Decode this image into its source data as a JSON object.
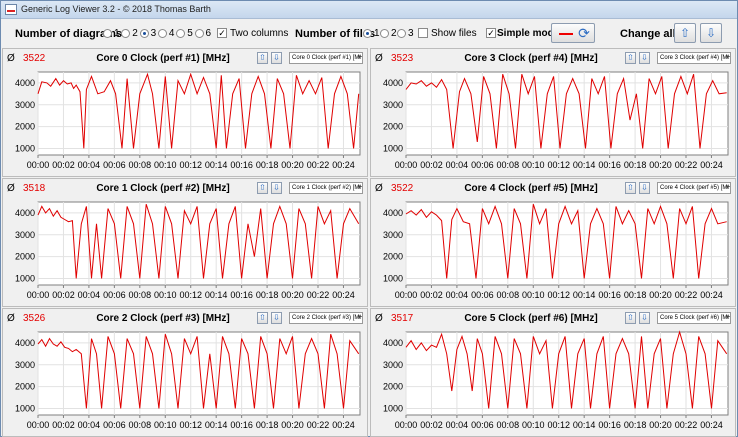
{
  "window": {
    "title": "Generic Log Viewer 3.2 - © 2018 Thomas Barth"
  },
  "toolbar": {
    "diagrams_label": "Number of diagrams",
    "diagram_options": [
      "1",
      "2",
      "3",
      "4",
      "5",
      "6"
    ],
    "diagrams_selected": "3",
    "two_columns_label": "Two columns",
    "two_columns_checked": true,
    "files_label": "Number of files",
    "file_options": [
      "1",
      "2",
      "3"
    ],
    "files_selected": "1",
    "show_files_label": "Show files",
    "show_files_checked": false,
    "simple_mode_label": "Simple mode",
    "simple_mode_checked": true,
    "change_all_label": "Change all",
    "line_color": "#e00000"
  },
  "panels": [
    {
      "title": "Core 0 Clock (perf #1) [MHz]",
      "average": "3522",
      "selector": "Core 0 Clock (perf #1) [MHz]"
    },
    {
      "title": "Core 3 Clock (perf #4) [MHz]",
      "average": "3523",
      "selector": "Core 3 Clock (perf #4) [MHz]"
    },
    {
      "title": "Core 1 Clock (perf #2) [MHz]",
      "average": "3518",
      "selector": "Core 1 Clock (perf #2) [MHz]"
    },
    {
      "title": "Core 4 Clock (perf #5) [MHz]",
      "average": "3522",
      "selector": "Core 4 Clock (perf #5) [MHz]"
    },
    {
      "title": "Core 2 Clock (perf #3) [MHz]",
      "average": "3526",
      "selector": "Core 2 Clock (perf #3) [MHz]"
    },
    {
      "title": "Core 5 Clock (perf #6) [MHz]",
      "average": "3517",
      "selector": "Core 5 Clock (perf #6) [MHz]"
    }
  ],
  "chart_data": {
    "type": "line",
    "x_tick_labels": [
      "00:00",
      "00:02",
      "00:04",
      "00:06",
      "00:08",
      "00:10",
      "00:12",
      "00:14",
      "00:16",
      "00:18",
      "00:20",
      "00:22",
      "00:24"
    ],
    "y_ticks": [
      1000,
      2000,
      3000,
      4000
    ],
    "ylim": [
      700,
      4500
    ],
    "xlim_minutes": [
      0,
      25.3
    ],
    "baseline_mhz": 3500,
    "plateau_mhz": 3800,
    "series": [
      {
        "x_minutes": [
          0.0,
          0.3,
          0.7,
          1.0,
          1.4,
          1.7,
          2.0,
          2.3,
          2.6,
          2.8,
          3.0,
          3.3,
          3.6,
          3.8,
          4.2,
          4.7,
          5.2,
          5.7,
          6.1,
          6.6,
          7.0,
          7.5,
          8.0,
          8.6,
          9.0,
          9.5,
          10.0,
          10.5,
          11.0,
          11.5,
          12.0,
          12.5,
          13.0,
          13.5,
          14.0,
          14.4,
          14.8,
          15.3,
          15.8,
          16.3,
          16.8,
          17.3,
          17.8,
          18.3,
          18.8,
          19.3,
          19.8,
          20.3,
          20.8,
          21.3,
          21.8,
          22.3,
          22.8,
          23.3,
          23.8,
          24.3,
          24.8,
          25.2
        ],
        "y_mhz": [
          3500,
          4050,
          4000,
          3850,
          4200,
          3900,
          4100,
          3950,
          4000,
          3750,
          3900,
          3600,
          1000,
          3700,
          4300,
          3500,
          3600,
          4100,
          3500,
          1000,
          4200,
          1000,
          3500,
          4400,
          3500,
          1000,
          4300,
          1000,
          4100,
          3500,
          4400,
          3500,
          4250,
          3500,
          1000,
          4350,
          1000,
          3500,
          4200,
          1000,
          3500,
          4300,
          3500,
          1000,
          4200,
          3500,
          1000,
          4350,
          3500,
          4100,
          3500,
          4250,
          1000,
          3500,
          4300,
          3500,
          1000,
          3500
        ]
      },
      {
        "x_minutes": [
          0.0,
          0.4,
          0.8,
          1.2,
          1.6,
          2.0,
          2.4,
          2.8,
          3.2,
          3.7,
          4.2,
          4.6,
          5.1,
          5.6,
          6.1,
          6.6,
          7.1,
          7.6,
          8.1,
          8.6,
          9.1,
          9.6,
          10.1,
          10.6,
          11.1,
          11.6,
          12.1,
          12.6,
          13.1,
          13.6,
          14.1,
          14.6,
          15.1,
          15.6,
          16.1,
          16.6,
          17.1,
          17.6,
          18.1,
          18.6,
          19.1,
          19.6,
          20.1,
          20.6,
          21.1,
          21.6,
          22.1,
          22.6,
          23.1,
          23.6,
          24.1,
          24.6,
          25.2
        ],
        "y_mhz": [
          3700,
          4000,
          3950,
          4100,
          3850,
          4000,
          3800,
          4150,
          3700,
          1000,
          3600,
          4200,
          3500,
          1300,
          4300,
          3500,
          1000,
          4400,
          3500,
          1000,
          4400,
          3500,
          4300,
          1000,
          3500,
          4300,
          1000,
          3500,
          4200,
          3500,
          1000,
          4200,
          3500,
          4300,
          1000,
          3500,
          4200,
          2300,
          3500,
          1000,
          4200,
          3500,
          4300,
          1000,
          3500,
          4300,
          3500,
          4400,
          1000,
          3500,
          4100,
          3500,
          3550
        ]
      },
      {
        "x_minutes": [
          0.0,
          0.3,
          0.6,
          0.9,
          1.2,
          1.5,
          1.8,
          2.1,
          2.4,
          2.7,
          3.0,
          3.4,
          3.8,
          4.2,
          4.6,
          5.0,
          5.5,
          6.0,
          6.5,
          7.0,
          7.5,
          8.0,
          8.5,
          9.0,
          9.5,
          10.0,
          10.5,
          11.0,
          11.5,
          12.0,
          12.5,
          13.0,
          13.5,
          14.0,
          14.5,
          15.0,
          15.5,
          16.0,
          16.5,
          17.0,
          17.5,
          18.0,
          18.5,
          19.0,
          19.5,
          20.0,
          20.5,
          21.0,
          21.5,
          22.0,
          22.5,
          23.0,
          23.5,
          24.0,
          24.5,
          25.2
        ],
        "y_mhz": [
          3900,
          4300,
          4000,
          4200,
          3850,
          4100,
          3800,
          3700,
          3600,
          3650,
          1000,
          3500,
          4300,
          1000,
          3500,
          1000,
          4200,
          3500,
          1000,
          4300,
          3500,
          1000,
          4400,
          3500,
          1000,
          4300,
          3500,
          1000,
          4100,
          3500,
          4300,
          1000,
          3500,
          4200,
          1000,
          3500,
          4300,
          1000,
          3500,
          2000,
          4200,
          1000,
          3500,
          4300,
          3500,
          1000,
          4200,
          3500,
          1000,
          4300,
          3500,
          4100,
          1000,
          3500,
          4200,
          3500
        ]
      },
      {
        "x_minutes": [
          0.0,
          0.4,
          0.8,
          1.2,
          1.6,
          2.0,
          2.4,
          2.8,
          3.2,
          3.6,
          4.0,
          4.5,
          5.0,
          5.5,
          6.0,
          6.5,
          7.0,
          7.5,
          8.0,
          8.5,
          9.0,
          9.5,
          10.0,
          10.5,
          11.0,
          11.5,
          12.0,
          12.5,
          13.0,
          13.5,
          14.0,
          14.5,
          15.0,
          15.5,
          16.0,
          16.5,
          17.0,
          17.5,
          18.0,
          18.5,
          19.0,
          19.5,
          20.0,
          20.5,
          21.0,
          21.5,
          22.0,
          22.5,
          23.0,
          23.5,
          24.0,
          24.5,
          25.2
        ],
        "y_mhz": [
          3950,
          4100,
          3900,
          4150,
          3800,
          4050,
          3900,
          3650,
          1000,
          3700,
          4200,
          3600,
          3500,
          1000,
          4200,
          3500,
          4300,
          3500,
          1000,
          4200,
          3500,
          1000,
          4400,
          3500,
          4200,
          1000,
          3500,
          4300,
          3500,
          4100,
          1000,
          3500,
          4200,
          3500,
          1000,
          4300,
          3500,
          4100,
          3500,
          1000,
          4200,
          3500,
          4300,
          3500,
          1000,
          4200,
          3500,
          4300,
          1000,
          3500,
          4200,
          3500,
          3600
        ]
      },
      {
        "x_minutes": [
          0.0,
          0.3,
          0.6,
          0.9,
          1.2,
          1.5,
          1.8,
          2.1,
          2.4,
          2.7,
          3.0,
          3.4,
          3.8,
          4.2,
          4.6,
          5.0,
          5.5,
          6.0,
          6.5,
          7.0,
          7.5,
          8.0,
          8.5,
          9.0,
          9.5,
          10.0,
          10.5,
          11.0,
          11.5,
          12.0,
          12.5,
          13.0,
          13.5,
          14.0,
          14.5,
          15.0,
          15.5,
          16.0,
          16.5,
          17.0,
          17.5,
          18.0,
          18.5,
          19.0,
          19.5,
          20.0,
          20.5,
          21.0,
          21.5,
          22.0,
          22.5,
          23.0,
          23.5,
          24.0,
          24.5,
          25.2
        ],
        "y_mhz": [
          3950,
          4150,
          3850,
          4200,
          3950,
          3850,
          4050,
          3800,
          3750,
          3600,
          3700,
          3500,
          1000,
          4200,
          3500,
          1000,
          4300,
          3500,
          1000,
          4200,
          3500,
          1000,
          4300,
          3500,
          1000,
          4400,
          3500,
          1000,
          4200,
          3500,
          4300,
          1000,
          3500,
          1000,
          4300,
          3500,
          1000,
          4200,
          3500,
          1000,
          4300,
          3500,
          1000,
          4200,
          3500,
          4300,
          1000,
          3500,
          4200,
          3500,
          1000,
          4400,
          3500,
          1000,
          4100,
          3500
        ]
      },
      {
        "x_minutes": [
          0.0,
          0.4,
          0.8,
          1.2,
          1.6,
          2.0,
          2.4,
          2.8,
          3.2,
          3.6,
          4.0,
          4.4,
          4.8,
          5.2,
          5.6,
          6.0,
          6.5,
          7.0,
          7.5,
          8.0,
          8.5,
          9.0,
          9.5,
          10.0,
          10.5,
          11.0,
          11.5,
          12.0,
          12.5,
          13.0,
          13.5,
          14.0,
          14.5,
          15.0,
          15.5,
          16.0,
          16.5,
          17.0,
          17.5,
          18.0,
          18.5,
          19.0,
          19.5,
          20.0,
          20.5,
          21.0,
          21.5,
          22.0,
          22.5,
          23.0,
          23.5,
          24.0,
          24.5,
          25.2
        ],
        "y_mhz": [
          3800,
          4100,
          3700,
          4000,
          3650,
          3900,
          3800,
          4400,
          3500,
          1800,
          3700,
          4300,
          3500,
          1800,
          4200,
          3500,
          1000,
          4300,
          3500,
          1000,
          4200,
          3500,
          1000,
          4300,
          3500,
          4100,
          1000,
          3500,
          4300,
          1000,
          3500,
          4200,
          1000,
          3500,
          4300,
          1000,
          3500,
          4200,
          3500,
          1000,
          4300,
          1000,
          3500,
          4200,
          1000,
          3500,
          4500,
          3500,
          1000,
          4300,
          3500,
          1000,
          4100,
          3500
        ]
      }
    ]
  }
}
